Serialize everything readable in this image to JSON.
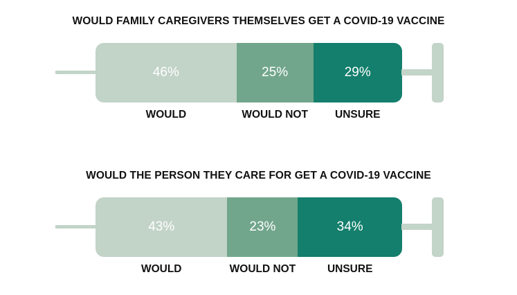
{
  "chart_data": [
    {
      "type": "bar",
      "title": "WOULD FAMILY CAREGIVERS THEMSELVES GET A COVID-19 VACCINE",
      "categories": [
        "WOULD",
        "WOULD NOT",
        "UNSURE"
      ],
      "values": [
        46,
        25,
        29
      ],
      "value_labels": [
        "46%",
        "25%",
        "29%"
      ],
      "colors": [
        "#c2d3c8",
        "#72a68c",
        "#137f6c"
      ]
    },
    {
      "type": "bar",
      "title": "WOULD THE PERSON THEY CARE FOR GET A COVID-19 VACCINE",
      "categories": [
        "WOULD",
        "WOULD NOT",
        "UNSURE"
      ],
      "values": [
        43,
        23,
        34
      ],
      "value_labels": [
        "43%",
        "23%",
        "34%"
      ],
      "colors": [
        "#c2d3c8",
        "#72a68c",
        "#137f6c"
      ]
    }
  ]
}
